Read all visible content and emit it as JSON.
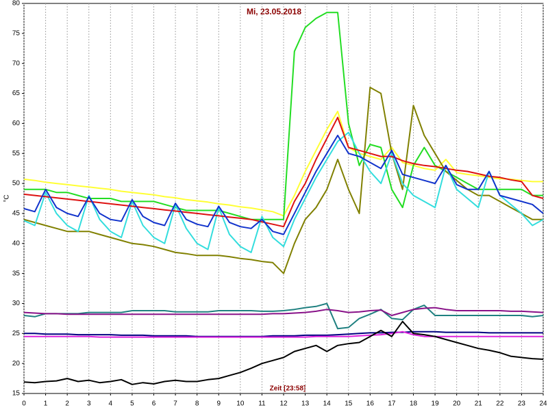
{
  "chart_data": {
    "type": "line",
    "title": "Mi, 23.05.2018",
    "y_label": "°C",
    "x_label": "Zeit [23:58]",
    "x": [
      0,
      0.5,
      1,
      1.5,
      2,
      2.5,
      3,
      3.5,
      4,
      4.5,
      5,
      5.5,
      6,
      6.5,
      7,
      7.5,
      8,
      8.5,
      9,
      9.5,
      10,
      10.5,
      11,
      11.5,
      12,
      12.5,
      13,
      13.5,
      14,
      14.5,
      15,
      15.5,
      16,
      16.5,
      17,
      17.5,
      18,
      18.5,
      19,
      19.5,
      20,
      20.5,
      21,
      21.5,
      22,
      22.5,
      23,
      23.5,
      24
    ],
    "xlim": [
      0,
      24
    ],
    "xticks": [
      0,
      1,
      2,
      3,
      4,
      5,
      6,
      7,
      8,
      9,
      10,
      11,
      12,
      13,
      14,
      15,
      16,
      17,
      18,
      19,
      20,
      21,
      22,
      23,
      24
    ],
    "ylim": [
      15,
      80
    ],
    "yticks": [
      15,
      20,
      25,
      30,
      35,
      40,
      45,
      50,
      55,
      60,
      65,
      70,
      75,
      80
    ],
    "grid": "x",
    "series": [
      {
        "color": "#ffff33",
        "values": [
          50.7,
          50.5,
          50.2,
          50,
          49.8,
          49.6,
          49.4,
          49.2,
          49,
          48.7,
          48.5,
          48.3,
          48.1,
          47.8,
          47.6,
          47.3,
          47.1,
          46.9,
          46.6,
          46.4,
          46.1,
          45.9,
          45.6,
          45.3,
          44.6,
          48,
          52,
          55.5,
          59,
          62,
          56,
          55,
          54.5,
          54,
          56,
          53.5,
          53,
          52.5,
          52.2,
          54,
          51.8,
          51.5,
          51.3,
          51,
          50.8,
          50.7,
          50.5,
          50.3,
          50.3
        ]
      },
      {
        "color": "#22dd22",
        "values": [
          49,
          49,
          49,
          48.5,
          48.5,
          48,
          47.5,
          47.5,
          47.5,
          47,
          47,
          47,
          47,
          46.5,
          46,
          45.5,
          45.5,
          45.5,
          45.5,
          45,
          44.5,
          44,
          44,
          44,
          44,
          72,
          76,
          77.5,
          78.5,
          78.5,
          60,
          53,
          56.5,
          56,
          49,
          46,
          53,
          56,
          53,
          52,
          51,
          50,
          49,
          49,
          49,
          49,
          49,
          48,
          48
        ]
      },
      {
        "color": "#808000",
        "values": [
          44,
          43.5,
          43,
          42.5,
          42,
          42,
          42,
          41.5,
          41,
          40.5,
          40,
          39.8,
          39.5,
          39,
          38.5,
          38.3,
          38,
          38,
          38,
          37.8,
          37.5,
          37.3,
          37,
          36.8,
          35,
          40,
          44,
          46,
          49,
          54,
          49,
          45,
          66,
          65,
          55,
          49,
          63,
          58,
          55,
          52,
          50.5,
          49,
          48,
          48,
          47,
          46,
          45,
          44,
          44
        ]
      },
      {
        "color": "#33dddd",
        "values": [
          43.8,
          43,
          48.5,
          45,
          43,
          42,
          48,
          44,
          42,
          41,
          47,
          43,
          41,
          40,
          46.5,
          42.5,
          40,
          39,
          46,
          41.5,
          39.5,
          38.5,
          44.5,
          41,
          39.5,
          44,
          47.5,
          51,
          54,
          57,
          58.5,
          55,
          52,
          50,
          55,
          50,
          48,
          47,
          46,
          53,
          49,
          47.5,
          46,
          52,
          48,
          46.5,
          45,
          43,
          44
        ]
      },
      {
        "color": "#dd1111",
        "values": [
          48.2,
          48,
          47.8,
          47.6,
          47.4,
          47.2,
          47,
          46.8,
          46.6,
          46.4,
          46.2,
          46,
          45.8,
          45.6,
          45.4,
          45.2,
          45,
          44.8,
          44.6,
          44.4,
          44.2,
          44,
          43.6,
          43.2,
          42.8,
          47,
          50,
          54,
          57.5,
          61,
          56,
          55.5,
          55,
          54.5,
          54.5,
          53.8,
          53.3,
          53,
          52.8,
          52.5,
          52.2,
          52,
          51.6,
          51.2,
          51,
          50.6,
          50.3,
          48,
          47.5
        ]
      },
      {
        "color": "#1133cc",
        "values": [
          45.8,
          45.3,
          49,
          46,
          45,
          44.5,
          47.8,
          45,
          44,
          43.7,
          47.3,
          44.5,
          43.5,
          43,
          46.7,
          44,
          43.2,
          42.8,
          46.2,
          43.5,
          42.8,
          42.5,
          44,
          42,
          41.5,
          45,
          48.5,
          52,
          55,
          58,
          55,
          54.5,
          53.5,
          52.5,
          55.5,
          51.5,
          51,
          50.5,
          50,
          53,
          49.8,
          49,
          49,
          52,
          48,
          47.5,
          47,
          46.5,
          45
        ]
      },
      {
        "color": "#1f8080",
        "values": [
          28,
          27.8,
          28.3,
          28.3,
          28.3,
          28.3,
          28.5,
          28.5,
          28.5,
          28.5,
          28.8,
          28.8,
          28.8,
          28.8,
          28.6,
          28.6,
          28.6,
          28.6,
          28.8,
          28.8,
          28.8,
          28.8,
          28.7,
          28.7,
          28.8,
          29,
          29.3,
          29.5,
          30,
          25.8,
          26,
          27.5,
          28.2,
          29,
          27.5,
          27.3,
          29,
          29.7,
          28,
          28,
          28,
          28,
          28,
          28,
          28,
          28,
          28,
          27.8,
          28
        ]
      },
      {
        "color": "#881188",
        "values": [
          28.5,
          28.4,
          28.3,
          28.3,
          28.2,
          28.2,
          28.2,
          28.2,
          28.2,
          28.2,
          28.2,
          28.2,
          28.2,
          28.2,
          28.2,
          28.2,
          28.2,
          28.2,
          28.2,
          28.2,
          28.2,
          28.2,
          28.2,
          28.3,
          28.3,
          28.4,
          28.5,
          28.7,
          29,
          28.8,
          28.5,
          28.6,
          28.8,
          28.9,
          28,
          28.5,
          29,
          29.2,
          29.3,
          29,
          28.8,
          28.8,
          28.8,
          28.8,
          28.8,
          28.7,
          28.7,
          28.6,
          28.5
        ]
      },
      {
        "color": "#000080",
        "values": [
          25,
          25,
          24.9,
          24.9,
          24.9,
          24.8,
          24.8,
          24.8,
          24.8,
          24.7,
          24.7,
          24.7,
          24.6,
          24.6,
          24.6,
          24.6,
          24.5,
          24.5,
          24.5,
          24.5,
          24.5,
          24.5,
          24.5,
          24.6,
          24.6,
          24.6,
          24.7,
          24.7,
          24.7,
          24.8,
          24.9,
          25,
          25.1,
          25.1,
          25.2,
          25.2,
          25.3,
          25.3,
          25.3,
          25.2,
          25.2,
          25.2,
          25.2,
          25.1,
          25.1,
          25.1,
          25.1,
          25.1,
          25.1
        ]
      },
      {
        "color": "#dd22dd",
        "values": [
          24.5,
          24.5,
          24.5,
          24.5,
          24.5,
          24.5,
          24.5,
          24.4,
          24.4,
          24.4,
          24.4,
          24.4,
          24.4,
          24.4,
          24.4,
          24.4,
          24.4,
          24.4,
          24.4,
          24.4,
          24.4,
          24.4,
          24.4,
          24.4,
          24.4,
          24.4,
          24.4,
          24.5,
          24.5,
          24.5,
          24.5,
          24.6,
          24.7,
          24.8,
          25,
          25.3,
          24.8,
          24.5,
          24.5,
          24.5,
          24.5,
          24.5,
          24.5,
          24.5,
          24.5,
          24.5,
          24.5,
          24.5,
          24.5
        ]
      },
      {
        "color": "#000000",
        "values": [
          16.9,
          16.8,
          17,
          17.1,
          17.5,
          17,
          17.2,
          16.8,
          17,
          17.3,
          16.5,
          16.8,
          16.6,
          17,
          17.2,
          17,
          17,
          17.3,
          17.5,
          18,
          18.5,
          19.2,
          20,
          20.5,
          21,
          22,
          22.5,
          23,
          22,
          23,
          23.3,
          23.5,
          24.5,
          25.5,
          24.5,
          27,
          25,
          24.8,
          24.5,
          24,
          23.5,
          23,
          22.5,
          22.2,
          21.8,
          21.2,
          21,
          20.8,
          20.7
        ]
      }
    ]
  }
}
